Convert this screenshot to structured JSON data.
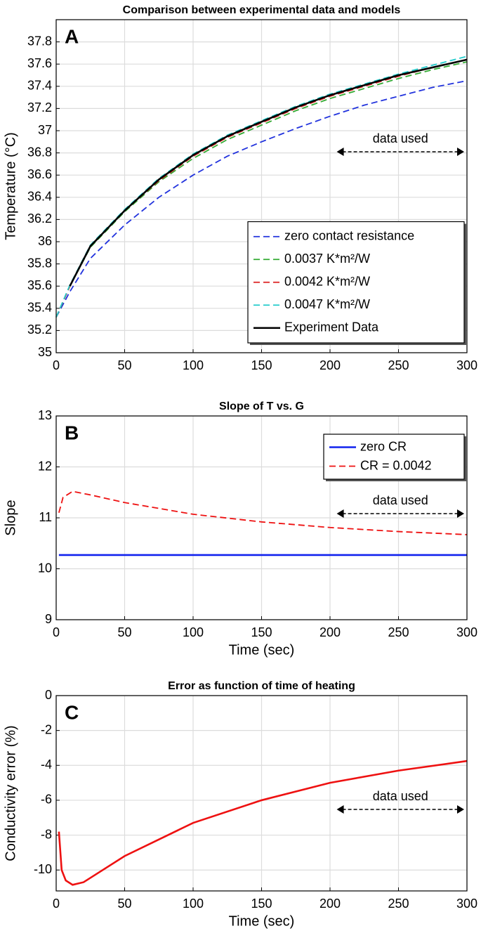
{
  "chart_data": [
    {
      "type": "line",
      "title": "Comparison between experimental data and models",
      "panel_label": "A",
      "ylabel": "Temperature (°C)",
      "annotation": "data used",
      "x": [
        0,
        10,
        25,
        50,
        75,
        100,
        125,
        150,
        175,
        200,
        225,
        250,
        275,
        300
      ],
      "series": [
        {
          "name": "zero contact resistance",
          "color": "#2233dd",
          "linestyle": "dashed",
          "values": [
            35.32,
            35.55,
            35.85,
            36.15,
            36.4,
            36.6,
            36.77,
            36.9,
            37.02,
            37.13,
            37.23,
            37.31,
            37.39,
            37.45
          ]
        },
        {
          "name": "0.0037 K*m²/W",
          "color": "#33aa33",
          "linestyle": "dashed",
          "values": [
            35.32,
            35.6,
            35.95,
            36.27,
            36.54,
            36.75,
            36.92,
            37.05,
            37.18,
            37.29,
            37.38,
            37.47,
            37.55,
            37.62
          ]
        },
        {
          "name": "0.0042 K*m²/W",
          "color": "#dd2222",
          "linestyle": "dashed",
          "values": [
            35.32,
            35.6,
            35.96,
            36.28,
            36.55,
            36.77,
            36.94,
            37.07,
            37.2,
            37.31,
            37.4,
            37.49,
            37.57,
            37.64
          ]
        },
        {
          "name": "0.0047 K*m²/W",
          "color": "#22cccc",
          "linestyle": "dashed",
          "values": [
            35.32,
            35.61,
            35.97,
            36.29,
            36.57,
            36.79,
            36.96,
            37.09,
            37.22,
            37.33,
            37.42,
            37.51,
            37.59,
            37.67
          ]
        },
        {
          "name": "Experiment Data",
          "color": "#000000",
          "linestyle": "solid",
          "values": [
            null,
            35.6,
            35.96,
            36.28,
            36.56,
            36.78,
            36.95,
            37.08,
            37.21,
            37.32,
            37.41,
            37.5,
            37.57,
            37.64
          ]
        }
      ],
      "xlim": [
        0,
        300
      ],
      "ylim": [
        35,
        38
      ],
      "xticks": [
        0,
        50,
        100,
        150,
        200,
        250,
        300
      ],
      "yticks": [
        35,
        35.2,
        35.4,
        35.6,
        35.8,
        36,
        36.2,
        36.4,
        36.6,
        36.8,
        37,
        37.2,
        37.4,
        37.6,
        37.8
      ],
      "grid": true,
      "legend": "lower right"
    },
    {
      "type": "line",
      "title": "Slope of T vs. G",
      "panel_label": "B",
      "xlabel": "Time (sec)",
      "ylabel": "Slope",
      "annotation": "data used",
      "x": [
        2,
        5,
        12,
        25,
        50,
        100,
        150,
        200,
        250,
        300
      ],
      "series": [
        {
          "name": "zero CR",
          "color": "#1122ee",
          "linestyle": "solid",
          "values": [
            10.27,
            10.27,
            10.27,
            10.27,
            10.27,
            10.27,
            10.27,
            10.27,
            10.27,
            10.27
          ]
        },
        {
          "name": "CR = 0.0042",
          "color": "#ee1111",
          "linestyle": "dashed",
          "values": [
            11.1,
            11.4,
            11.52,
            11.45,
            11.3,
            11.07,
            10.92,
            10.81,
            10.73,
            10.67
          ]
        }
      ],
      "xlim": [
        0,
        300
      ],
      "ylim": [
        9,
        13
      ],
      "xticks": [
        0,
        50,
        100,
        150,
        200,
        250,
        300
      ],
      "yticks": [
        9,
        10,
        11,
        12,
        13
      ],
      "grid": true,
      "legend": "upper right"
    },
    {
      "type": "line",
      "title": "Error as function of time of heating",
      "panel_label": "C",
      "xlabel": "Time (sec)",
      "ylabel": "Conductivity error (%)",
      "annotation": "data used",
      "x": [
        2,
        4,
        7,
        12,
        20,
        50,
        100,
        150,
        200,
        250,
        300
      ],
      "series": [
        {
          "color": "#ee1111",
          "linestyle": "solid",
          "values": [
            -7.8,
            -10,
            -10.6,
            -10.85,
            -10.7,
            -9.2,
            -7.3,
            -6.0,
            -5.0,
            -4.3,
            -3.75
          ]
        }
      ],
      "xlim": [
        0,
        300
      ],
      "ylim": [
        -11.2,
        0
      ],
      "xticks": [
        0,
        50,
        100,
        150,
        200,
        250,
        300
      ],
      "yticks": [
        -10,
        -8,
        -6,
        -4,
        -2,
        0
      ],
      "grid": true
    }
  ]
}
